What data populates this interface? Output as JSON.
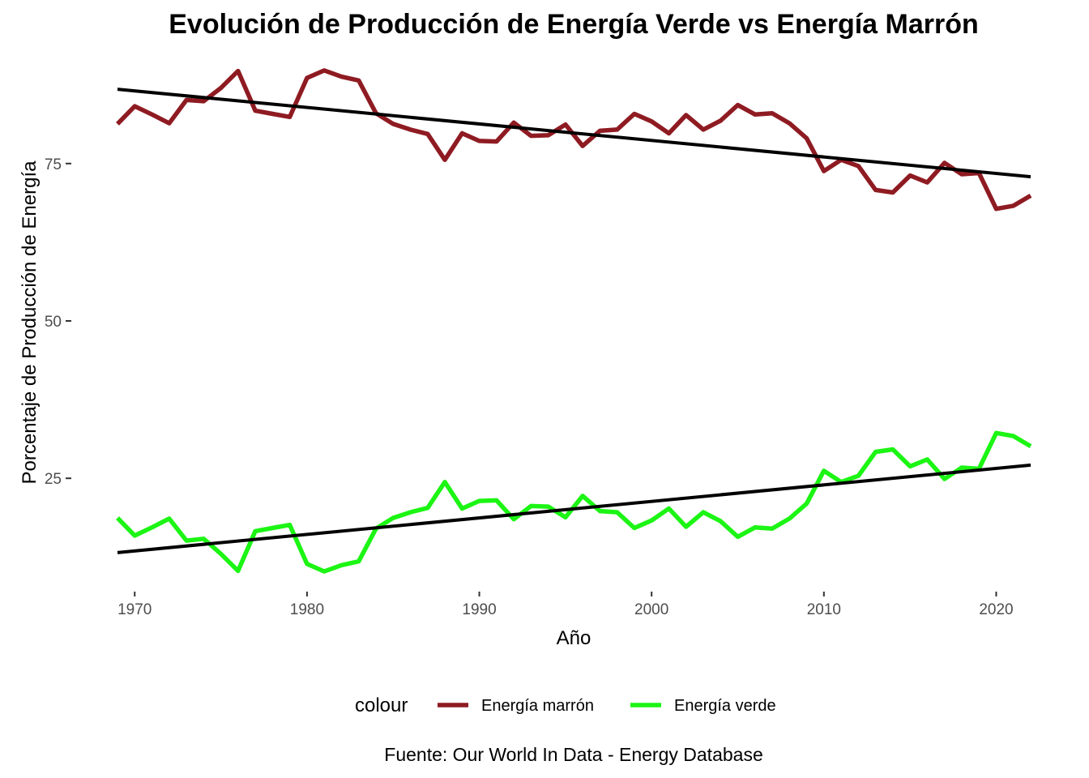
{
  "chart_data": {
    "type": "line",
    "title": "Evolución de Producción de Energía Verde vs Energía Marrón",
    "xlabel": "Año",
    "ylabel": "Porcentaje de Producción de Energía",
    "caption": "Fuente: Our World In Data - Energy Database",
    "legend_title": "colour",
    "legend_position": "bottom",
    "grid": false,
    "xlim": [
      1969,
      2022
    ],
    "ylim": [
      7,
      93
    ],
    "x_ticks": [
      1970,
      1980,
      1990,
      2000,
      2010,
      2020
    ],
    "y_ticks": [
      25,
      50,
      75
    ],
    "x": [
      1969,
      1970,
      1971,
      1972,
      1973,
      1974,
      1975,
      1976,
      1977,
      1978,
      1979,
      1980,
      1981,
      1982,
      1983,
      1984,
      1985,
      1986,
      1987,
      1988,
      1989,
      1990,
      1991,
      1992,
      1993,
      1994,
      1995,
      1996,
      1997,
      1998,
      1999,
      2000,
      2001,
      2002,
      2003,
      2004,
      2005,
      2006,
      2007,
      2008,
      2009,
      2010,
      2011,
      2012,
      2013,
      2014,
      2015,
      2016,
      2017,
      2018,
      2019,
      2020,
      2021,
      2022
    ],
    "series": [
      {
        "name": "Energía marrón",
        "color": "#8f1b22",
        "values": [
          81.3,
          84.1,
          82.8,
          81.4,
          85.1,
          84.9,
          87.0,
          89.7,
          83.4,
          82.9,
          82.4,
          88.6,
          89.8,
          88.8,
          88.2,
          83.0,
          81.3,
          80.4,
          79.7,
          75.6,
          79.8,
          78.6,
          78.5,
          81.5,
          79.4,
          79.5,
          81.2,
          77.8,
          80.2,
          80.4,
          82.9,
          81.7,
          79.8,
          82.7,
          80.4,
          81.8,
          84.3,
          82.8,
          83.0,
          81.4,
          79.0,
          73.8,
          75.6,
          74.6,
          70.8,
          70.4,
          73.1,
          72.0,
          75.1,
          73.3,
          73.5,
          67.8,
          68.3,
          69.9
        ]
      },
      {
        "name": "Energía verde",
        "color": "#1cf514",
        "values": [
          18.7,
          15.9,
          17.2,
          18.6,
          15.1,
          15.4,
          13.0,
          10.3,
          16.6,
          17.1,
          17.6,
          11.4,
          10.2,
          11.2,
          11.8,
          17.0,
          18.7,
          19.6,
          20.3,
          24.4,
          20.2,
          21.4,
          21.5,
          18.5,
          20.6,
          20.5,
          18.8,
          22.2,
          19.8,
          19.6,
          17.1,
          18.3,
          20.2,
          17.3,
          19.6,
          18.2,
          15.7,
          17.2,
          17.0,
          18.6,
          21.0,
          26.2,
          24.4,
          25.4,
          29.2,
          29.6,
          26.9,
          28.0,
          24.9,
          26.7,
          26.5,
          32.2,
          31.7,
          30.1
        ]
      }
    ],
    "trend_lines": [
      {
        "color": "#000000",
        "from": [
          1969,
          86.8
        ],
        "to": [
          2022,
          72.9
        ]
      },
      {
        "color": "#000000",
        "from": [
          1969,
          13.2
        ],
        "to": [
          2022,
          27.1
        ]
      }
    ]
  }
}
